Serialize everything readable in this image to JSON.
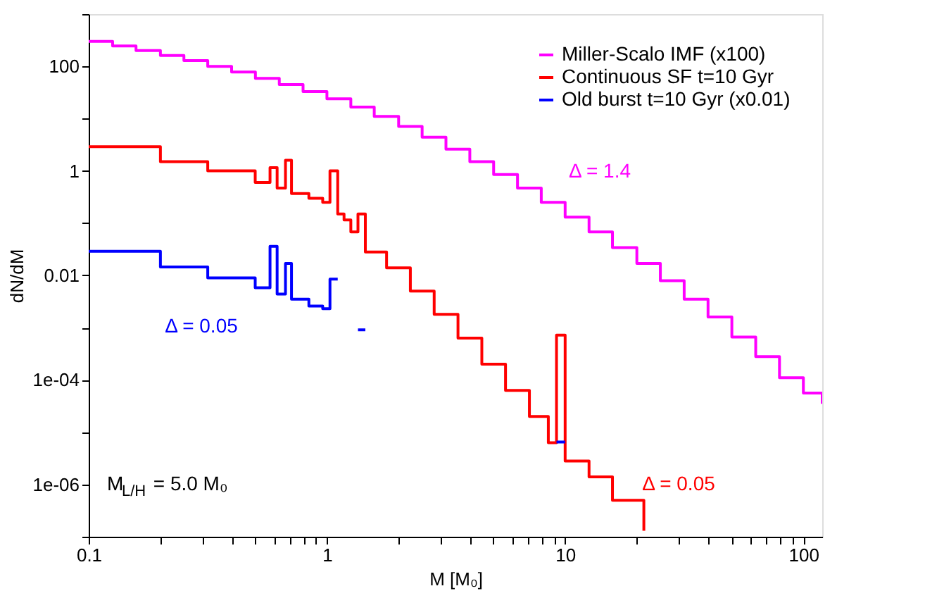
{
  "chart_data": {
    "type": "step",
    "xlabel": "M [M₀]",
    "ylabel": "dN/dM",
    "log": "xy",
    "legend": "top right",
    "line_style": "solid",
    "marker": "none",
    "xlim": [
      0.1,
      120
    ],
    "ylim": [
      1e-07,
      1000
    ],
    "xticks": [
      0.1,
      {
        "value": 0.2,
        "label": null
      },
      {
        "value": 0.3,
        "label": null
      },
      {
        "value": 0.4,
        "label": null
      },
      {
        "value": 0.5,
        "label": null
      },
      {
        "value": 0.6,
        "label": null
      },
      {
        "value": 0.7,
        "label": null
      },
      {
        "value": 0.8,
        "label": null
      },
      {
        "value": 0.9,
        "label": null
      },
      1,
      {
        "value": 2,
        "label": null
      },
      {
        "value": 3,
        "label": null
      },
      {
        "value": 4,
        "label": null
      },
      {
        "value": 5,
        "label": null
      },
      {
        "value": 6,
        "label": null
      },
      {
        "value": 7,
        "label": null
      },
      {
        "value": 8,
        "label": null
      },
      {
        "value": 9,
        "label": null
      },
      10,
      {
        "value": 20,
        "label": null
      },
      {
        "value": 30,
        "label": null
      },
      {
        "value": 40,
        "label": null
      },
      {
        "value": 50,
        "label": null
      },
      {
        "value": 60,
        "label": null
      },
      {
        "value": 70,
        "label": null
      },
      {
        "value": 80,
        "label": null
      },
      {
        "value": 90,
        "label": null
      },
      100
    ],
    "yticks": [
      {
        "value": 1e-07,
        "label": null
      },
      {
        "value": 1e-06,
        "label": "1e-06"
      },
      {
        "value": 1e-05,
        "label": null
      },
      {
        "value": 0.0001,
        "label": "1e-04"
      },
      {
        "value": 0.001,
        "label": null
      },
      0.01,
      {
        "value": 0.1,
        "label": null
      },
      1,
      {
        "value": 10,
        "label": null
      },
      100,
      {
        "value": 1000,
        "label": null
      }
    ],
    "series": [
      {
        "name": "Miller-Scalo IMF (x100)",
        "color": "#ff00ff",
        "x": [
          0.1,
          0.126,
          0.158,
          0.2,
          0.251,
          0.316,
          0.398,
          0.501,
          0.631,
          0.794,
          1,
          1.26,
          1.58,
          2.0,
          2.51,
          3.16,
          3.98,
          5.01,
          6.31,
          7.94,
          10,
          12.6,
          15.8,
          20,
          25.1,
          31.6,
          39.8,
          50.1,
          63.1,
          79.4,
          100,
          120
        ],
        "values": [
          300,
          245,
          200,
          162,
          129,
          100,
          78,
          59,
          45,
          33,
          24,
          16.6,
          11,
          7.1,
          4.4,
          2.6,
          1.5,
          0.85,
          0.47,
          0.25,
          0.13,
          0.068,
          0.034,
          0.017,
          0.0079,
          0.0035,
          0.0016,
          0.00066,
          0.00028,
          0.00011,
          5.6e-05,
          3.5e-05
        ]
      },
      {
        "name": "Continuous SF t=10 Gyr",
        "color": "#ff0000",
        "x": [
          0.1,
          0.2,
          0.316,
          0.5,
          0.577,
          0.618,
          0.67,
          0.71,
          0.84,
          0.96,
          1.03,
          1.11,
          1.18,
          1.26,
          1.35,
          1.45,
          1.78,
          2.24,
          2.82,
          3.55,
          4.47,
          5.62,
          7.08,
          8.5,
          9.2,
          10,
          12.6,
          15.8,
          21.4
        ],
        "values": [
          2.9,
          1.5,
          1.0,
          0.6,
          1.15,
          0.47,
          1.6,
          0.37,
          0.3,
          0.25,
          1.0,
          0.15,
          0.115,
          0.068,
          0.15,
          0.028,
          0.014,
          0.005,
          0.0018,
          0.00063,
          0.0002,
          6.3e-05,
          2e-05,
          6.3e-06,
          0.00072,
          2.8e-06,
          1.4e-06,
          5e-07,
          1.3e-07
        ]
      },
      {
        "name": "Old burst t=10 Gyr (x0.01)",
        "color": "#0000ff",
        "x": [
          0.1,
          0.2,
          0.316,
          0.5,
          0.577,
          0.618,
          0.67,
          0.71,
          0.84,
          0.96,
          1.03,
          1.11,
          1.35,
          1.45,
          9.2,
          10
        ],
        "values": [
          0.029,
          0.0145,
          0.009,
          0.0058,
          0.036,
          0.0044,
          0.017,
          0.0035,
          0.0026,
          0.0023,
          0.0085,
          null,
          0.00091,
          null,
          6.5e-06,
          6.5e-06
        ]
      }
    ],
    "annotations": [
      "Δ = 1.4",
      "Δ = 0.05",
      "Δ = 0.05",
      "M$_{L/H}$ = 5.0 M₀"
    ]
  }
}
